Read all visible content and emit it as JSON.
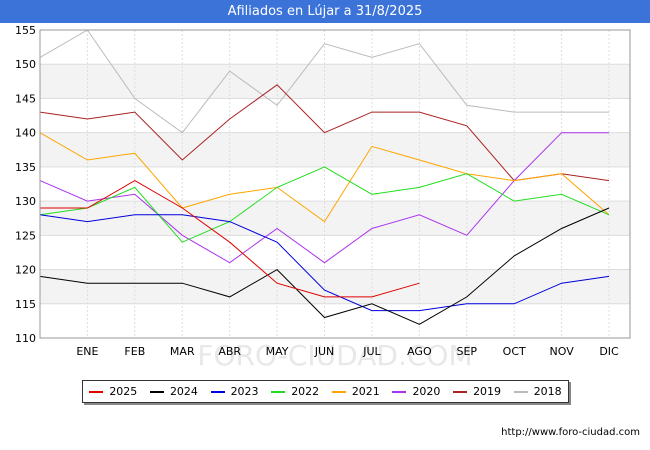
{
  "title": "Afiliados en Lújar a 31/8/2025",
  "source": "http://www.foro-ciudad.com",
  "watermark": "FORO-CIUDAD.COM",
  "chart_data": {
    "type": "line",
    "categories": [
      "",
      "ENE",
      "FEB",
      "MAR",
      "ABR",
      "MAY",
      "JUN",
      "JUL",
      "AGO",
      "SEP",
      "OCT",
      "NOV",
      "DIC"
    ],
    "y_ticks": [
      110,
      115,
      120,
      125,
      130,
      135,
      140,
      145,
      150,
      155
    ],
    "ylim": [
      110,
      155
    ],
    "grid": true,
    "legend_position": "bottom",
    "series": [
      {
        "name": "2025",
        "color": "#e00000",
        "values": [
          129,
          129,
          133,
          129,
          124,
          118,
          116,
          116,
          118,
          null,
          null,
          null,
          null
        ]
      },
      {
        "name": "2024",
        "color": "#000000",
        "values": [
          119,
          118,
          118,
          118,
          116,
          120,
          113,
          115,
          112,
          116,
          122,
          126,
          129
        ]
      },
      {
        "name": "2023",
        "color": "#0000dd",
        "values": [
          128,
          127,
          128,
          128,
          127,
          124,
          117,
          114,
          114,
          115,
          115,
          118,
          119
        ]
      },
      {
        "name": "2022",
        "color": "#22dd22",
        "values": [
          128,
          129,
          132,
          124,
          127,
          132,
          135,
          131,
          132,
          134,
          130,
          131,
          128
        ]
      },
      {
        "name": "2021",
        "color": "#ffa500",
        "values": [
          140,
          136,
          137,
          129,
          131,
          132,
          127,
          138,
          136,
          134,
          133,
          134,
          128
        ]
      },
      {
        "name": "2020",
        "color": "#aa33ee",
        "values": [
          133,
          130,
          131,
          125,
          121,
          126,
          121,
          126,
          128,
          125,
          133,
          140,
          140
        ]
      },
      {
        "name": "2019",
        "color": "#aa2222",
        "values": [
          143,
          142,
          143,
          136,
          142,
          147,
          140,
          143,
          143,
          141,
          133,
          134,
          133
        ]
      },
      {
        "name": "2018",
        "color": "#bbbbbb",
        "values": [
          151,
          155,
          145,
          140,
          149,
          144,
          153,
          151,
          153,
          144,
          143,
          143,
          143
        ]
      }
    ]
  }
}
